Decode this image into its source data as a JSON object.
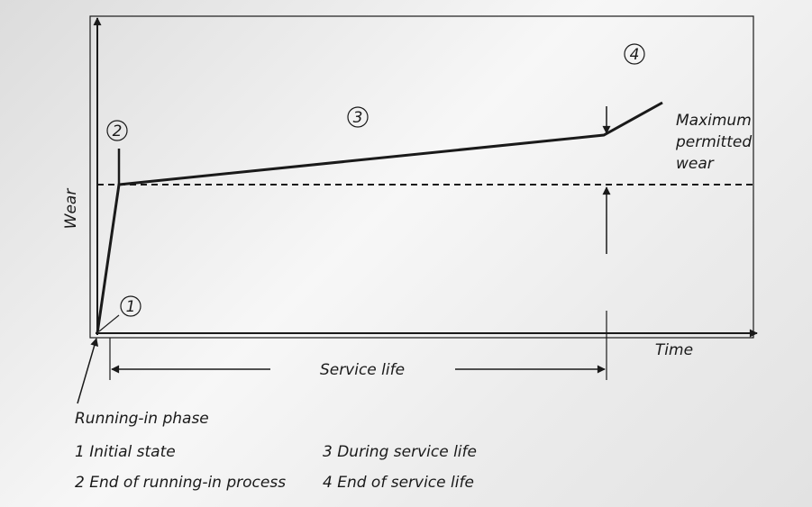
{
  "diagram": {
    "y_axis_label": "Wear",
    "x_axis_label": "Time",
    "span_label": "Service life",
    "pointer_label": "Running-in phase",
    "limit_label": [
      "Maximum",
      "permitted",
      "wear"
    ],
    "markers": [
      "1",
      "2",
      "3",
      "4"
    ],
    "legend": [
      "1 Initial state",
      "2 End of running-in process",
      "3 During service life",
      "4 End of service life"
    ]
  }
}
